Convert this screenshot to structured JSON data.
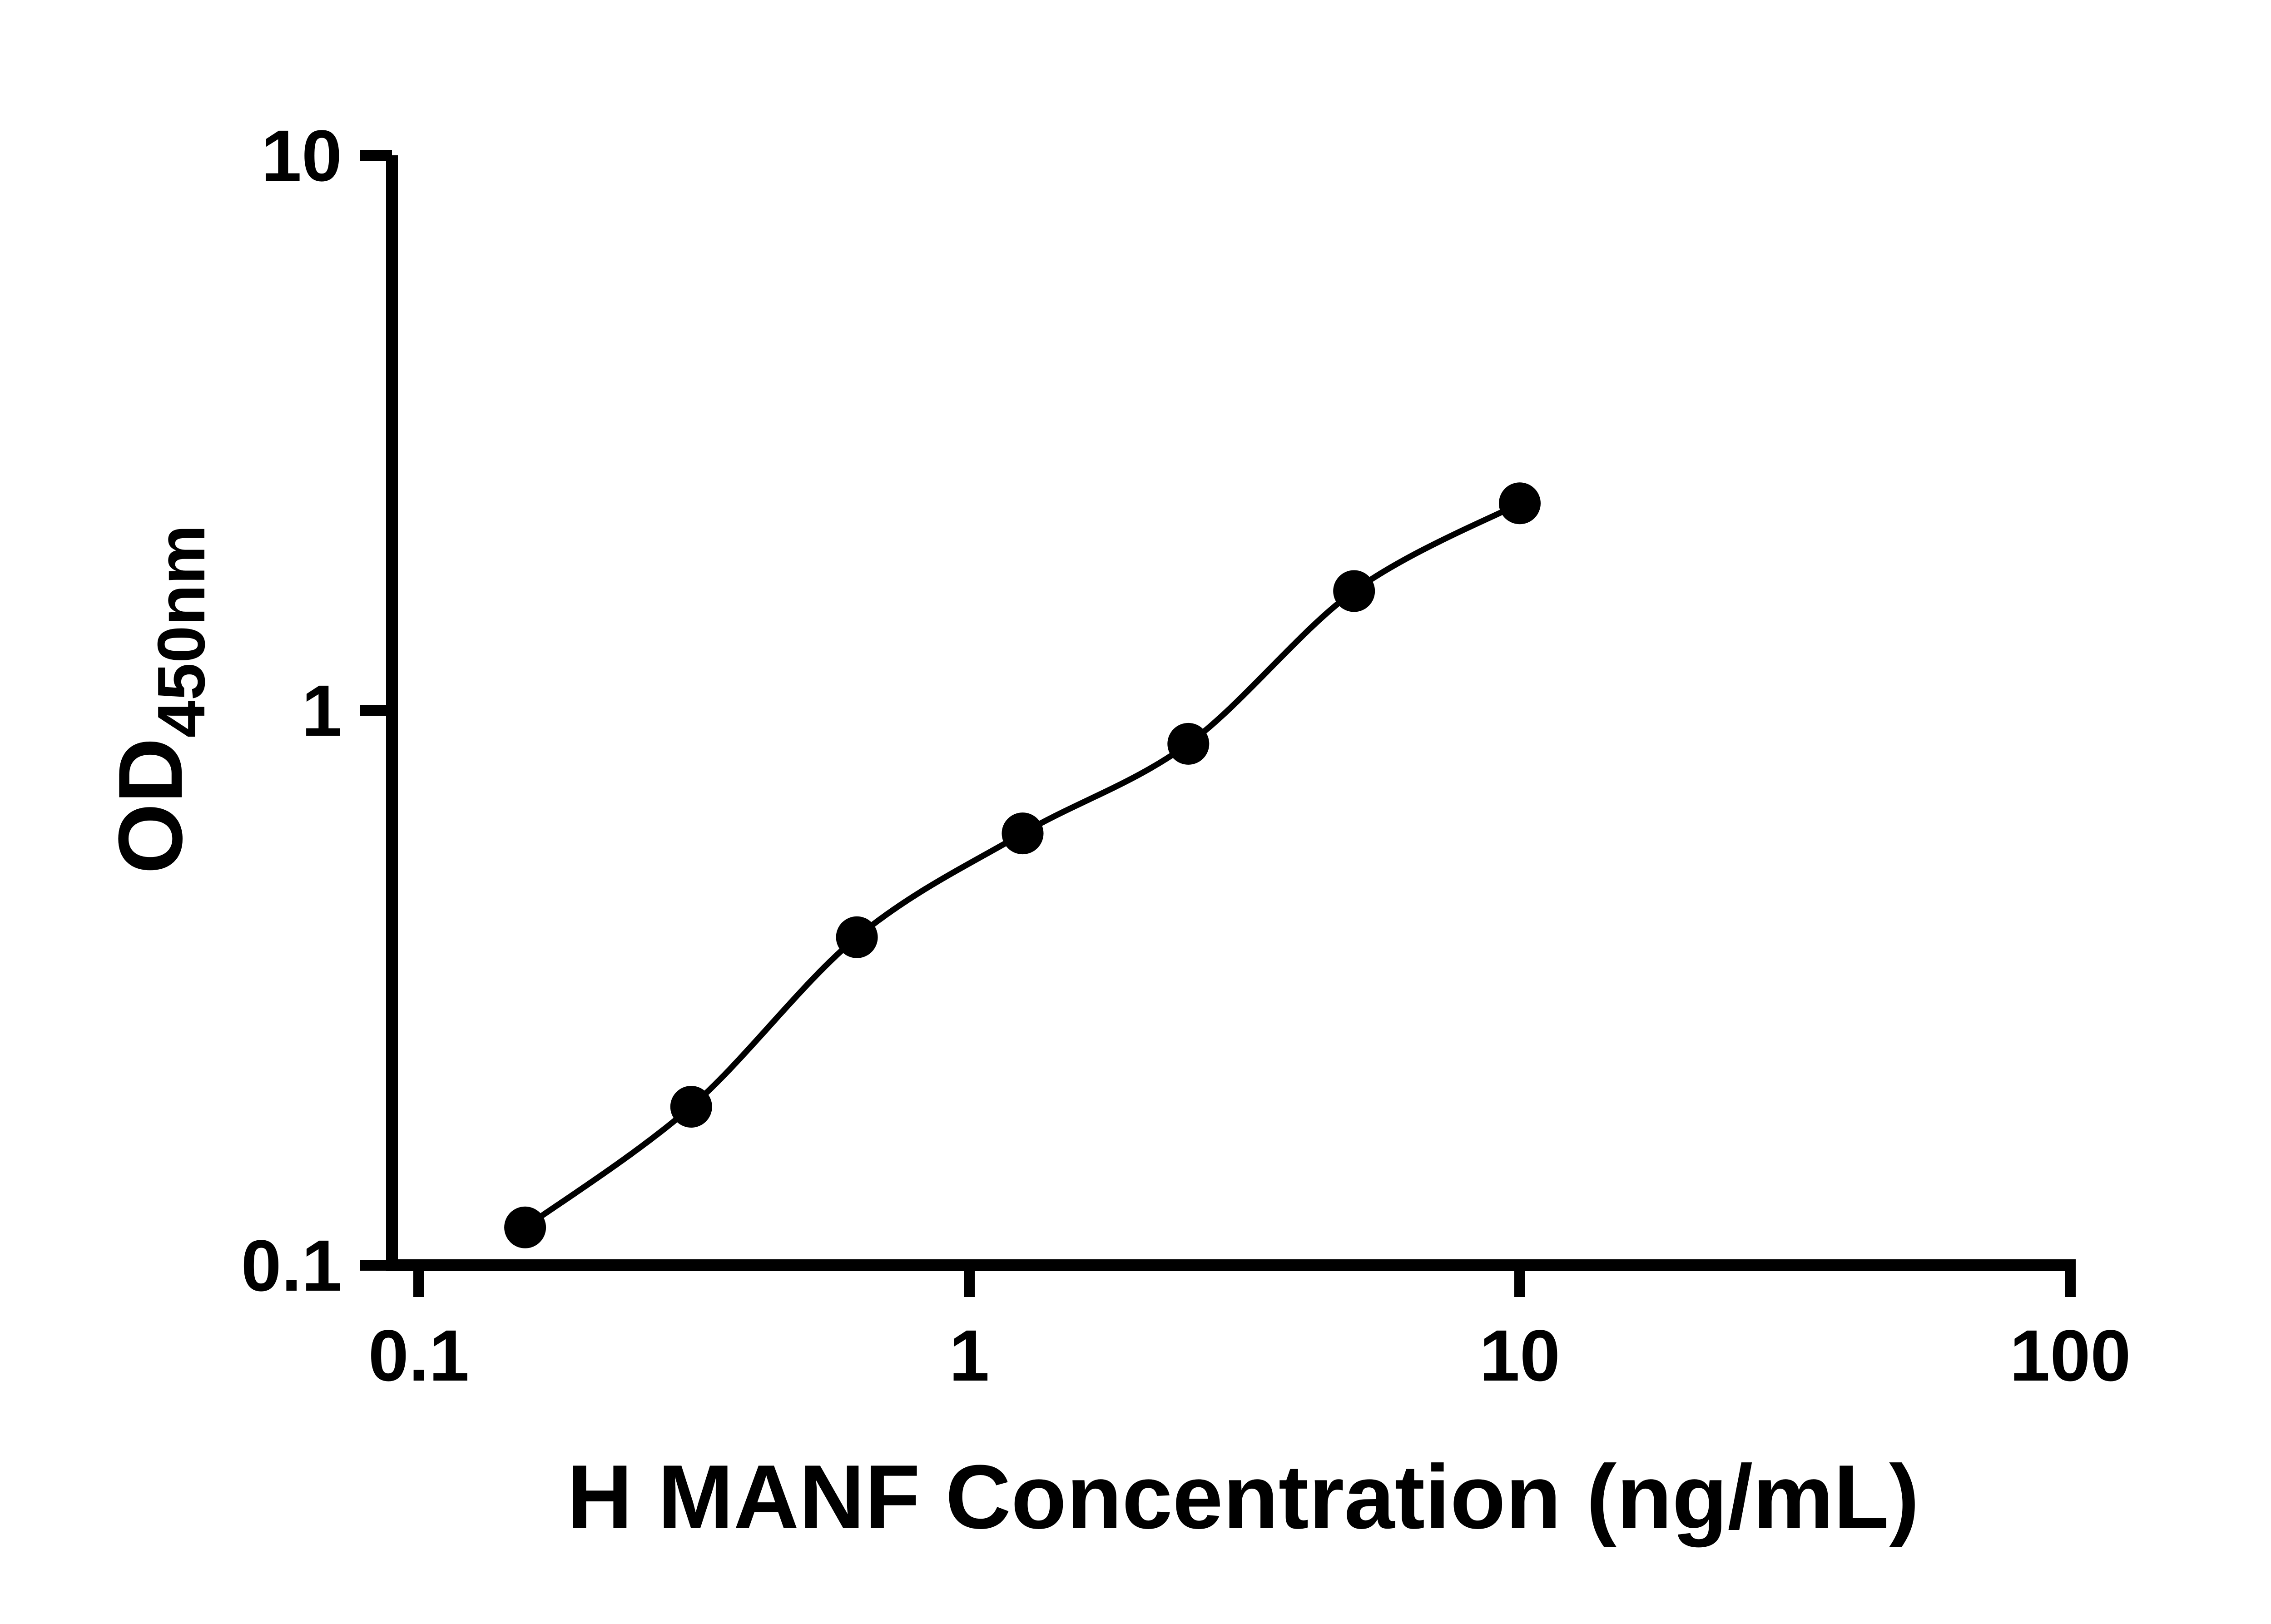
{
  "chart_data": {
    "type": "scatter",
    "title": "",
    "xlabel": "H MANF Concentration (ng/mL)",
    "ylabel": "OD",
    "ylabel_subscript": "450nm",
    "x_scale": "log",
    "y_scale": "log",
    "xlim": [
      0.1,
      100
    ],
    "ylim": [
      0.1,
      10
    ],
    "x_ticks": [
      "0.1",
      "1",
      "10",
      "100"
    ],
    "y_ticks": [
      "0.1",
      "1",
      "10"
    ],
    "x": [
      0.156,
      0.3125,
      0.625,
      1.25,
      2.5,
      5,
      10
    ],
    "y": [
      0.117,
      0.193,
      0.39,
      0.6,
      0.87,
      1.64,
      2.36
    ],
    "fit_line": "smooth curve through points",
    "grid": false,
    "legend_position": "none",
    "marker_color": "#000000",
    "line_color": "#000000",
    "axis_color": "#000000",
    "background_color": "#ffffff"
  }
}
